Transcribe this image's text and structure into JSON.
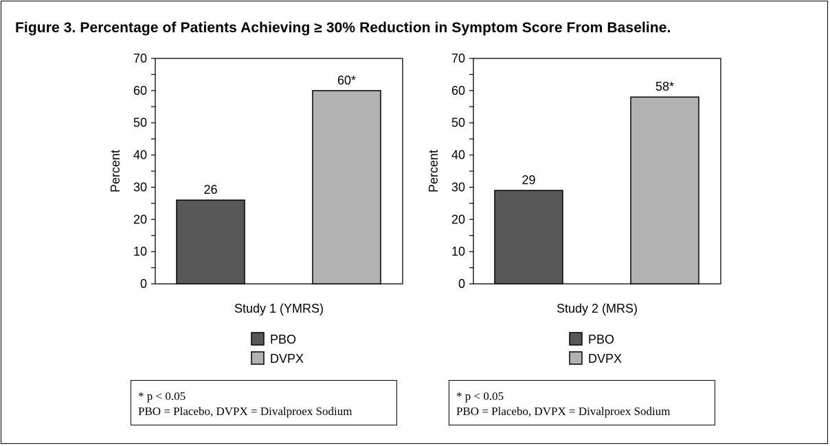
{
  "figure_title": "Figure 3. Percentage of Patients Achieving ≥ 30% Reduction in Symptom Score From Baseline.",
  "colors": {
    "PBO": "#585858",
    "DVPX": "#b2b2b2"
  },
  "chart_data": [
    {
      "type": "bar",
      "xlabel": "Study 1 (YMRS)",
      "ylabel": "Percent",
      "ylim": [
        0,
        70
      ],
      "yticks": [
        0,
        10,
        20,
        30,
        40,
        50,
        60,
        70
      ],
      "grid": false,
      "legend_position": "bottom",
      "series": [
        {
          "name": "PBO",
          "value": 26,
          "label": "26"
        },
        {
          "name": "DVPX",
          "value": 60,
          "label": "60*"
        }
      ]
    },
    {
      "type": "bar",
      "xlabel": "Study 2 (MRS)",
      "ylabel": "Percent",
      "ylim": [
        0,
        70
      ],
      "yticks": [
        0,
        10,
        20,
        30,
        40,
        50,
        60,
        70
      ],
      "grid": false,
      "legend_position": "bottom",
      "series": [
        {
          "name": "PBO",
          "value": 29,
          "label": "29"
        },
        {
          "name": "DVPX",
          "value": 58,
          "label": "58*"
        }
      ]
    }
  ],
  "notes": [
    {
      "line1": "* p < 0.05",
      "line2": "PBO = Placebo, DVPX = Divalproex Sodium"
    },
    {
      "line1": "* p < 0.05",
      "line2": "PBO = Placebo, DVPX = Divalproex Sodium"
    }
  ]
}
